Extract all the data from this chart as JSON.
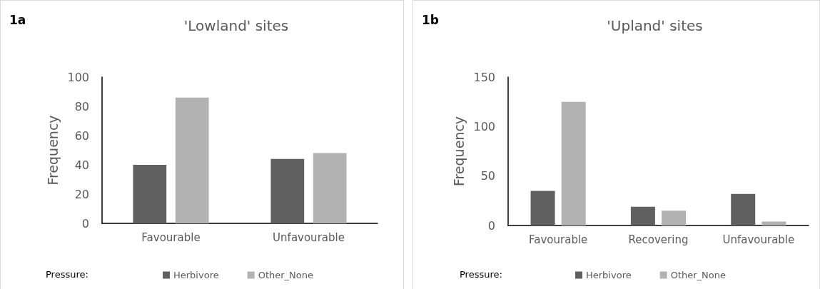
{
  "chart_data": [
    {
      "type": "bar",
      "title": "'Lowland' sites",
      "ylabel": "Frequency",
      "annotations": [
        "1a"
      ],
      "legend_title": "Pressure:",
      "categories": [
        "Favourable",
        "Unfavourable"
      ],
      "series": [
        {
          "name": "Herbivore",
          "color": "#606060",
          "values": [
            40,
            44
          ]
        },
        {
          "name": "Other_None",
          "color": "#b2b2b2",
          "values": [
            86,
            48
          ]
        }
      ],
      "ylim": [
        0,
        100
      ],
      "yticks": [
        0,
        20,
        40,
        60,
        80,
        100
      ],
      "grid": false,
      "legend": "bottom"
    },
    {
      "type": "bar",
      "title": "'Upland' sites",
      "ylabel": "Frequency",
      "annotations": [
        "1b"
      ],
      "legend_title": "Pressure:",
      "categories": [
        "Favourable",
        "Recovering",
        "Unfavourable"
      ],
      "series": [
        {
          "name": "Herbivore",
          "color": "#606060",
          "values": [
            35,
            19,
            32
          ]
        },
        {
          "name": "Other_None",
          "color": "#b2b2b2",
          "values": [
            125,
            15,
            4
          ]
        }
      ],
      "ylim": [
        0,
        150
      ],
      "yticks": [
        0,
        50,
        100,
        150
      ],
      "grid": false,
      "legend": "bottom"
    }
  ]
}
